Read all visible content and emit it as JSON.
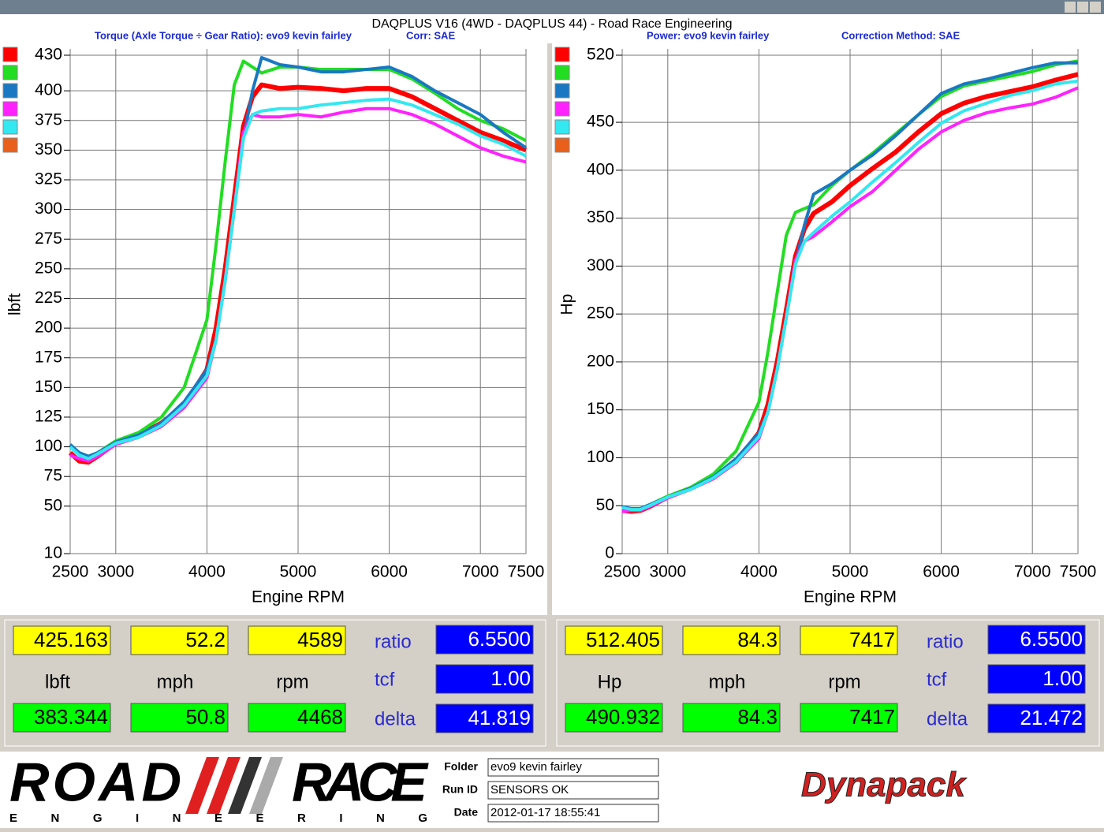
{
  "title": "DAQPLUS V16 (4WD - DAQPLUS 44) - Road Race Engineering",
  "chart_data": [
    {
      "type": "line",
      "subtitle": "Torque (Axle Torque ÷ Gear Ratio): evo9 kevin fairley",
      "correction": "Corr: SAE",
      "xlabel": "Engine RPM",
      "ylabel": "lbft",
      "xlim": [
        2500,
        7500
      ],
      "xticks": [
        2500,
        3000,
        4000,
        5000,
        6000,
        7000,
        7500
      ],
      "ylim": [
        10,
        430
      ],
      "yticks": [
        10,
        50,
        75,
        100,
        125,
        150,
        175,
        200,
        225,
        250,
        275,
        300,
        325,
        350,
        375,
        400,
        430
      ],
      "grid": true,
      "x": [
        2500,
        2600,
        2700,
        2800,
        3000,
        3250,
        3500,
        3750,
        4000,
        4100,
        4200,
        4300,
        4400,
        4500,
        4600,
        4800,
        5000,
        5250,
        5500,
        5750,
        6000,
        6250,
        6500,
        6750,
        7000,
        7250,
        7500
      ],
      "series": [
        {
          "color": "#ff0000",
          "values": [
            95,
            88,
            87,
            92,
            103,
            110,
            120,
            135,
            165,
            200,
            250,
            310,
            370,
            395,
            405,
            402,
            403,
            402,
            400,
            402,
            402,
            395,
            385,
            375,
            365,
            358,
            350
          ]
        },
        {
          "color": "#22dd22",
          "values": [
            100,
            95,
            92,
            95,
            105,
            112,
            125,
            150,
            207,
            270,
            340,
            405,
            425,
            420,
            415,
            420,
            420,
            418,
            418,
            418,
            418,
            410,
            398,
            385,
            375,
            368,
            358
          ]
        },
        {
          "color": "#1a78c2",
          "values": [
            102,
            95,
            92,
            95,
            104,
            110,
            120,
            138,
            165,
            190,
            240,
            300,
            360,
            400,
            428,
            422,
            420,
            416,
            416,
            418,
            420,
            412,
            400,
            390,
            380,
            365,
            352
          ]
        },
        {
          "color": "#ff22ff",
          "values": [
            93,
            90,
            88,
            92,
            102,
            108,
            117,
            133,
            158,
            190,
            240,
            300,
            365,
            380,
            378,
            378,
            380,
            378,
            382,
            385,
            385,
            380,
            372,
            362,
            352,
            345,
            340
          ]
        },
        {
          "color": "#33e8f0",
          "values": [
            100,
            93,
            90,
            94,
            103,
            108,
            118,
            135,
            160,
            190,
            240,
            300,
            360,
            380,
            383,
            385,
            385,
            388,
            390,
            392,
            393,
            388,
            380,
            372,
            362,
            355,
            345
          ]
        },
        {
          "color": "#e8601c",
          "values": [
            null,
            null,
            null,
            null,
            null,
            null,
            null,
            null,
            null,
            null,
            null,
            null,
            null,
            null,
            null,
            null,
            null,
            null,
            null,
            null,
            null,
            null,
            null,
            null,
            null,
            null,
            null
          ]
        }
      ]
    },
    {
      "type": "line",
      "subtitle": "Power: evo9 kevin fairley",
      "correction": "Correction Method: SAE",
      "xlabel": "Engine RPM",
      "ylabel": "Hp",
      "xlim": [
        2500,
        7500
      ],
      "xticks": [
        2500,
        3000,
        4000,
        5000,
        6000,
        7000,
        7500
      ],
      "ylim": [
        0,
        520
      ],
      "yticks": [
        0,
        50,
        100,
        150,
        200,
        250,
        300,
        350,
        400,
        450,
        520
      ],
      "grid": true,
      "x": [
        2500,
        2600,
        2700,
        2800,
        3000,
        3250,
        3500,
        3750,
        4000,
        4100,
        4200,
        4300,
        4400,
        4500,
        4600,
        4800,
        5000,
        5250,
        5500,
        5750,
        6000,
        6250,
        6500,
        6750,
        7000,
        7250,
        7500
      ],
      "series": [
        {
          "color": "#ff0000",
          "values": [
            45,
            44,
            45,
            49,
            59,
            68,
            80,
            96,
            126,
            156,
            200,
            254,
            310,
            339,
            355,
            367,
            384,
            402,
            419,
            440,
            459,
            470,
            477,
            482,
            487,
            494,
            500
          ]
        },
        {
          "color": "#22dd22",
          "values": [
            48,
            47,
            47,
            51,
            60,
            69,
            83,
            107,
            158,
            211,
            272,
            332,
            356,
            360,
            364,
            384,
            400,
            418,
            438,
            458,
            477,
            488,
            493,
            498,
            503,
            510,
            514
          ]
        },
        {
          "color": "#1a78c2",
          "values": [
            49,
            47,
            47,
            51,
            59,
            68,
            80,
            99,
            126,
            148,
            192,
            246,
            302,
            343,
            375,
            386,
            400,
            416,
            436,
            458,
            480,
            490,
            495,
            501,
            507,
            512,
            512
          ]
        },
        {
          "color": "#ff22ff",
          "values": [
            44,
            45,
            45,
            49,
            58,
            67,
            78,
            95,
            120,
            148,
            192,
            246,
            306,
            326,
            331,
            346,
            362,
            378,
            400,
            422,
            440,
            452,
            460,
            465,
            469,
            476,
            486
          ]
        },
        {
          "color": "#33e8f0",
          "values": [
            48,
            46,
            46,
            50,
            59,
            67,
            79,
            96,
            122,
            148,
            192,
            246,
            302,
            326,
            335,
            352,
            367,
            388,
            408,
            429,
            449,
            462,
            470,
            478,
            483,
            490,
            493
          ]
        },
        {
          "color": "#e8601c",
          "values": [
            null,
            null,
            null,
            null,
            null,
            null,
            null,
            null,
            null,
            null,
            null,
            null,
            null,
            null,
            null,
            null,
            null,
            null,
            null,
            null,
            null,
            null,
            null,
            null,
            null,
            null,
            null
          ]
        }
      ]
    }
  ],
  "readouts": [
    {
      "top": [
        "425.163",
        "52.2",
        "4589"
      ],
      "units": [
        "lbft",
        "mph",
        "rpm"
      ],
      "bottom": [
        "383.344",
        "50.8",
        "4468"
      ],
      "labels": [
        "ratio",
        "tcf",
        "delta"
      ],
      "params": [
        "6.5500",
        "1.00",
        "41.819"
      ]
    },
    {
      "top": [
        "512.405",
        "84.3",
        "7417"
      ],
      "units": [
        "Hp",
        "mph",
        "rpm"
      ],
      "bottom": [
        "490.932",
        "84.3",
        "7417"
      ],
      "labels": [
        "ratio",
        "tcf",
        "delta"
      ],
      "params": [
        "6.5500",
        "1.00",
        "21.472"
      ]
    }
  ],
  "run_info": {
    "labels": [
      "Folder",
      "Run ID",
      "Date"
    ],
    "values": [
      "evo9 kevin fairley",
      "SENSORS OK",
      "2012-01-17 18:55:41"
    ]
  },
  "logo": {
    "left": "ROAD",
    "right": "RACE",
    "sub": "E N G I N E E R I N G"
  },
  "brand": "Dynapack"
}
